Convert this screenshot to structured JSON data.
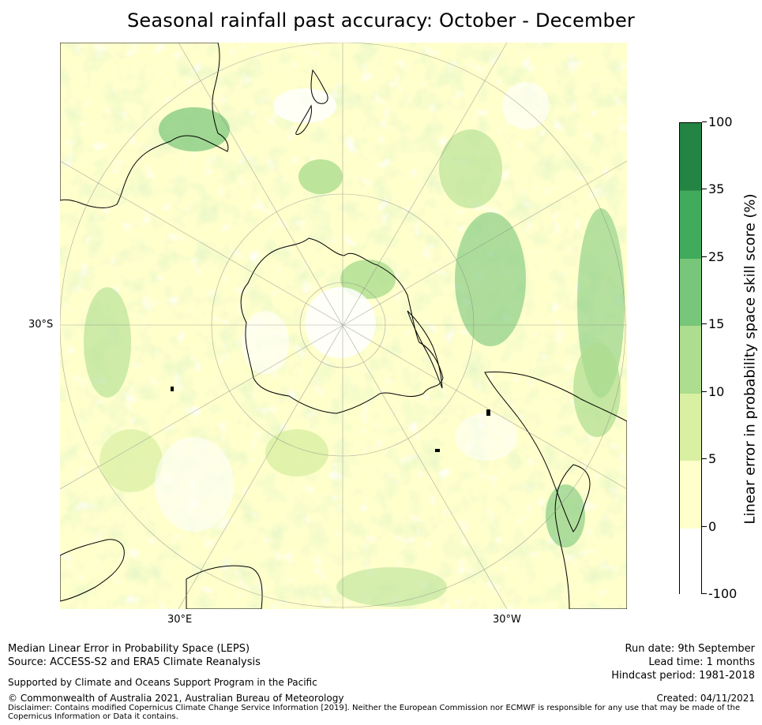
{
  "title": "Seasonal rainfall past accuracy: October - December",
  "map": {
    "lat_label": "30°S",
    "lon_labels": [
      "30°E",
      "30°W"
    ],
    "colors": {
      "ocean_base": "#ffffcc",
      "coast": "#000000",
      "grid": "#999999"
    }
  },
  "colorbar": {
    "title": "Linear error in probability space skill score (%)",
    "levels": [
      "-100",
      "0",
      "5",
      "10",
      "15",
      "25",
      "35",
      "100"
    ],
    "colors": [
      "#ffffff",
      "#ffffcc",
      "#d9f0a3",
      "#addd8e",
      "#78c679",
      "#41ab5d",
      "#238443"
    ]
  },
  "footer": {
    "left_line1": "Median Linear Error in Probability Space (LEPS)",
    "left_line2": "Source: ACCESS-S2 and ERA5 Climate Reanalysis",
    "support": "Supported by Climate and Oceans Support Program in the Pacific",
    "copyright": "© Commonwealth of Australia 2021, Australian Bureau of Meteorology",
    "run_date": "Run date: 9th September",
    "lead_time": "Lead time: 1 months",
    "hindcast": "Hindcast period: 1981-2018",
    "created": "Created: 04/11/2021",
    "disclaimer": "Disclaimer: Contains modified Copernicus Climate Change Service Information [2019]. Neither the European Commission nor ECMWF is responsible for any use that may be made of the Copernicus Information or Data it contains."
  }
}
